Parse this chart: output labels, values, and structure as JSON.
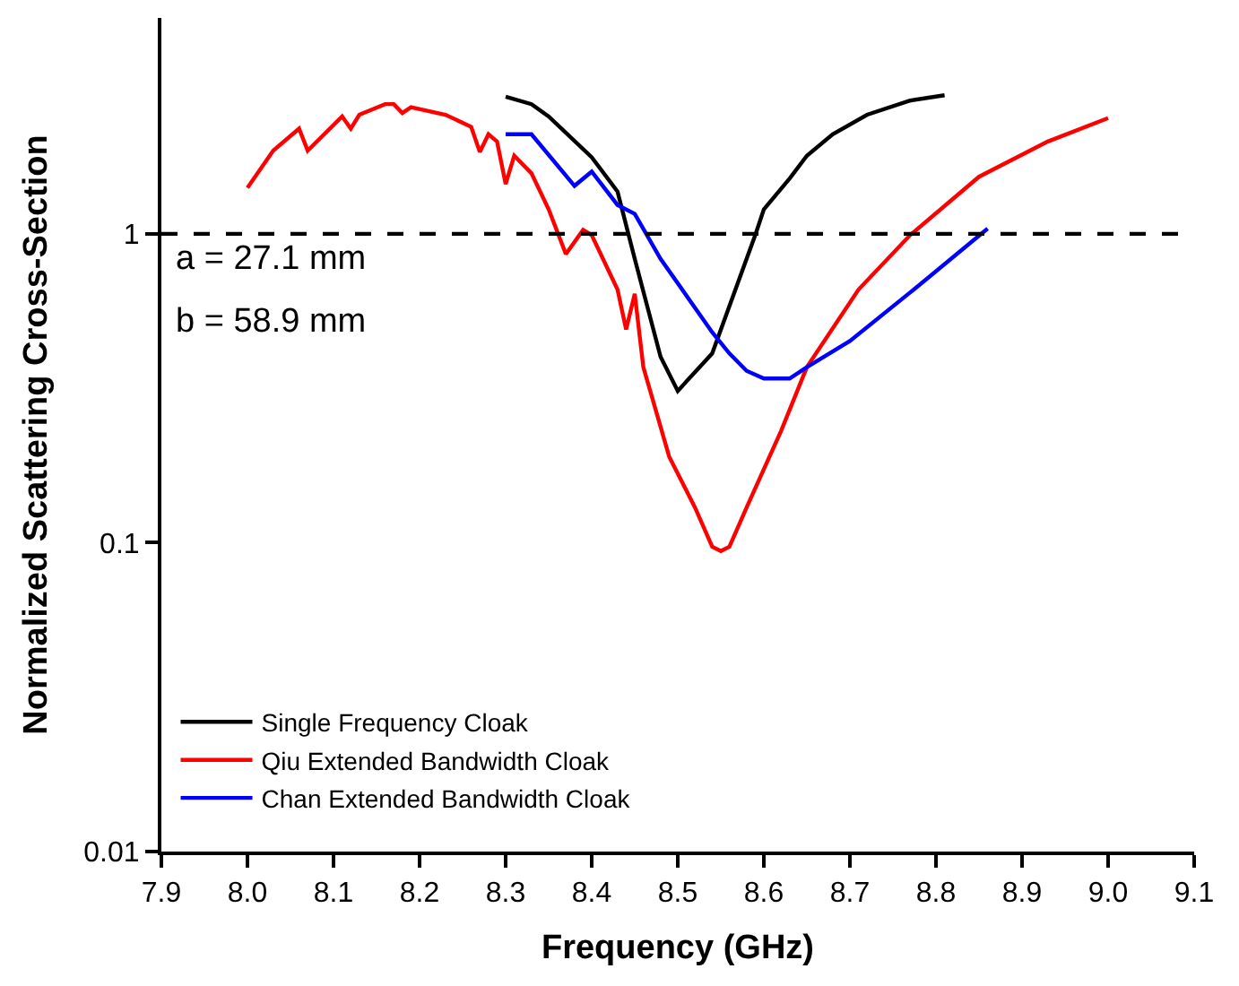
{
  "chart_data": {
    "type": "line",
    "xlabel": "Frequency (GHz)",
    "ylabel": "Normalized Scattering Cross-Section",
    "log": "y",
    "xlim": [
      7.9,
      9.1
    ],
    "ylim": [
      0.01,
      5
    ],
    "xticks": [
      {
        "value": 7.9,
        "label": "7.9"
      },
      {
        "value": 8.0,
        "label": "8.0"
      },
      {
        "value": 8.1,
        "label": "8.1"
      },
      {
        "value": 8.2,
        "label": "8.2"
      },
      {
        "value": 8.3,
        "label": "8.3"
      },
      {
        "value": 8.4,
        "label": "8.4"
      },
      {
        "value": 8.5,
        "label": "8.5"
      },
      {
        "value": 8.6,
        "label": "8.6"
      },
      {
        "value": 8.7,
        "label": "8.7"
      },
      {
        "value": 8.8,
        "label": "8.8"
      },
      {
        "value": 8.9,
        "label": "8.9"
      },
      {
        "value": 9.0,
        "label": "9.0"
      },
      {
        "value": 9.1,
        "label": "9.1"
      }
    ],
    "yticks": [
      0.01,
      0.1,
      1
    ],
    "legend": "bottom left",
    "marker": "none",
    "line_style": "solid",
    "ref_lines": [
      {
        "axis": "y",
        "value": 1,
        "color": "#000000",
        "line_style": "dashed"
      }
    ],
    "annotations": [
      "a = 27.1 mm",
      "b = 58.9 mm"
    ],
    "series": [
      {
        "name": "Single Frequency Cloak",
        "color": "#000000",
        "x": [
          8.3,
          8.33,
          8.35,
          8.4,
          8.43,
          8.45,
          8.48,
          8.5,
          8.54,
          8.59,
          8.6,
          8.63,
          8.65,
          8.68,
          8.72,
          8.77,
          8.81
        ],
        "values": [
          2.78,
          2.63,
          2.4,
          1.77,
          1.37,
          0.83,
          0.4,
          0.31,
          0.41,
          0.99,
          1.2,
          1.51,
          1.79,
          2.1,
          2.43,
          2.7,
          2.81
        ]
      },
      {
        "name": "Qiu Extended Bandwidth Cloak",
        "color": "#ff0000",
        "x": [
          8.0,
          8.03,
          8.06,
          8.07,
          8.11,
          8.12,
          8.13,
          8.16,
          8.17,
          8.18,
          8.19,
          8.23,
          8.26,
          8.27,
          8.28,
          8.29,
          8.3,
          8.31,
          8.33,
          8.35,
          8.37,
          8.39,
          8.4,
          8.43,
          8.44,
          8.45,
          8.46,
          8.49,
          8.52,
          8.54,
          8.55,
          8.56,
          8.58,
          8.62,
          8.65,
          8.71,
          8.77,
          8.85,
          8.93,
          9.0
        ],
        "values": [
          1.41,
          1.86,
          2.19,
          1.86,
          2.4,
          2.19,
          2.43,
          2.63,
          2.63,
          2.46,
          2.57,
          2.43,
          2.22,
          1.84,
          2.1,
          1.99,
          1.45,
          1.79,
          1.57,
          1.2,
          0.86,
          1.03,
          0.99,
          0.66,
          0.49,
          0.64,
          0.37,
          0.19,
          0.13,
          0.097,
          0.094,
          0.097,
          0.13,
          0.23,
          0.37,
          0.66,
          0.99,
          1.53,
          1.99,
          2.37
        ]
      },
      {
        "name": "Chan Extended Bandwidth Cloak",
        "color": "#0000ff",
        "x": [
          8.3,
          8.33,
          8.38,
          8.4,
          8.43,
          8.45,
          8.48,
          8.54,
          8.56,
          8.58,
          8.6,
          8.63,
          8.65,
          8.7,
          8.78,
          8.86
        ],
        "values": [
          2.1,
          2.1,
          1.43,
          1.59,
          1.24,
          1.16,
          0.83,
          0.48,
          0.41,
          0.36,
          0.34,
          0.34,
          0.37,
          0.45,
          0.68,
          1.04
        ]
      }
    ]
  }
}
